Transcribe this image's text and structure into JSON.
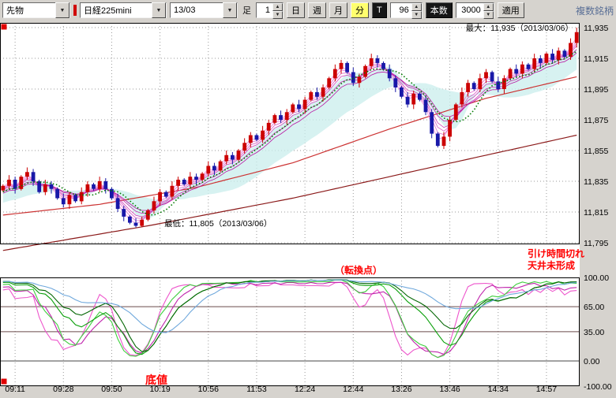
{
  "toolbar": {
    "instrument_type": "先物",
    "instrument": "日経225mini",
    "contract_month": "13/03",
    "bar_label": "足",
    "interval_value": "1",
    "day": "日",
    "week": "週",
    "month": "月",
    "minute": "分",
    "tick_button": "T",
    "bars_value": "96",
    "bars_button": "本数",
    "range_value": "3000",
    "apply_button": "適用",
    "right_label": "複数銘柄"
  },
  "chart": {
    "annotations": {
      "max_label": "最大：11,935（2013/03/06）",
      "min_label": "最低：11,805（2013/03/06）",
      "note_line1": "引け時間切れ",
      "note_line2": "天井未形成",
      "turning_point": "（転換点）",
      "bottom_label": "底値"
    }
  },
  "colors": {
    "up": "#cc0000",
    "down": "#1818a8",
    "cloud": "#c9eeec",
    "green_ma": "#007a00",
    "ribbon": [
      "#ef84dd",
      "#e56fd2",
      "#da59c6",
      "#cf43ba",
      "#c42dae",
      "#b917a2"
    ],
    "ma_mid": "#cc3333",
    "ma_slow": "#8b1a1a",
    "annotation_red": "#ff0000",
    "grid": "#9a9a9a",
    "ref_line": "#6a4a4a",
    "zero_line": "#444444"
  },
  "chart_data": {
    "type": "candlestick+oscillator",
    "bar_count": 96,
    "price_max_marker": 11935,
    "price_min_marker": 11805,
    "y_ticks": [
      11935,
      11915,
      11895,
      11875,
      11855,
      11835,
      11815,
      11795
    ],
    "osc_ticks": [
      100,
      65,
      35,
      0,
      -100
    ],
    "osc_ref_levels": [
      65,
      35
    ],
    "x_labels": [
      "09:11",
      "09:28",
      "09:50",
      "10:19",
      "10:56",
      "11:53",
      "12:24",
      "12:44",
      "13:26",
      "13:46",
      "14:34",
      "14:57"
    ],
    "first_label_bar": 2,
    "label_step": 8,
    "closes": [
      11832,
      11836,
      11830,
      11838,
      11841,
      11835,
      11828,
      11833,
      11830,
      11824,
      11820,
      11826,
      11822,
      11828,
      11833,
      11830,
      11835,
      11830,
      11824,
      11817,
      11812,
      11808,
      11806,
      11810,
      11816,
      11822,
      11828,
      11825,
      11832,
      11836,
      11833,
      11838,
      11836,
      11840,
      11845,
      11842,
      11848,
      11852,
      11849,
      11855,
      11860,
      11865,
      11862,
      11868,
      11873,
      11878,
      11875,
      11880,
      11885,
      11882,
      11888,
      11893,
      11890,
      11896,
      11902,
      11908,
      11912,
      11906,
      11899,
      11903,
      11910,
      11915,
      11912,
      11908,
      11902,
      11896,
      11890,
      11885,
      11892,
      11888,
      11880,
      11866,
      11858,
      11864,
      11875,
      11885,
      11893,
      11899,
      11895,
      11902,
      11906,
      11900,
      11895,
      11902,
      11908,
      11905,
      11911,
      11908,
      11915,
      11912,
      11918,
      11914,
      11920,
      11916,
      11925,
      11932
    ],
    "history": {
      "start": 11791,
      "end": 11830,
      "count": 40
    },
    "ma_mid_points": [
      [
        0,
        11813
      ],
      [
        16,
        11820
      ],
      [
        32,
        11831
      ],
      [
        48,
        11847
      ],
      [
        64,
        11869
      ],
      [
        80,
        11889
      ],
      [
        95,
        11903
      ]
    ],
    "ma_slow_points": [
      [
        0,
        11790
      ],
      [
        24,
        11806
      ],
      [
        48,
        11824
      ],
      [
        72,
        11845
      ],
      [
        95,
        11865
      ]
    ],
    "cloud_periods": [
      5,
      21
    ],
    "green_ma_period": 7,
    "ribbon_periods": [
      2,
      3,
      4,
      5,
      7,
      9
    ],
    "oscillators": [
      {
        "period": 10,
        "smooth": 3,
        "color": "#ee55cc"
      },
      {
        "period": 14,
        "smooth": 5,
        "color": "#c026ad"
      },
      {
        "period": 20,
        "smooth": 3,
        "color": "#3fcf3f"
      },
      {
        "period": 30,
        "smooth": 5,
        "color": "#0a9f0a"
      },
      {
        "period": 40,
        "smooth": 5,
        "color": "#056705"
      },
      {
        "period": 50,
        "smooth": 9,
        "color": "#6fa8dc"
      }
    ]
  }
}
